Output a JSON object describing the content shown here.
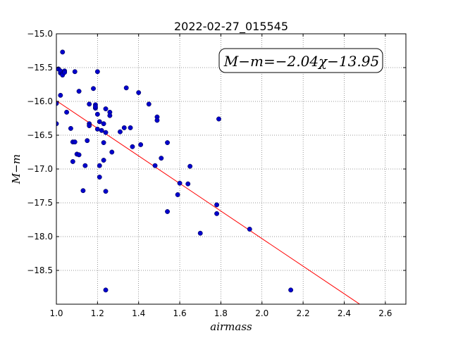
{
  "chart_data": {
    "type": "scatter",
    "title": "2022-02-27_015545",
    "xlabel": "airmass",
    "ylabel": "M−m",
    "xlim": [
      1.0,
      2.7
    ],
    "ylim": [
      -15.0,
      -19.0
    ],
    "y_inverted": true,
    "grid": true,
    "x_ticks": [
      1.0,
      1.2,
      1.4,
      1.6,
      1.8,
      2.0,
      2.2,
      2.4,
      2.6
    ],
    "x_tick_labels": [
      "1.0",
      "1.2",
      "1.4",
      "1.6",
      "1.8",
      "2.0",
      "2.2",
      "2.4",
      "2.6"
    ],
    "y_ticks": [
      -15.0,
      -15.5,
      -16.0,
      -16.5,
      -17.0,
      -17.5,
      -18.0,
      -18.5
    ],
    "y_tick_labels": [
      "−15.0",
      "−15.5",
      "−16.0",
      "−16.5",
      "−17.0",
      "−17.5",
      "−18.0",
      "−18.5"
    ],
    "annotation": "M−m=−2.04χ−13.95",
    "fit": {
      "slope": -2.04,
      "intercept": -13.95,
      "color": "#ff0000"
    },
    "point_color": "#0000cc",
    "series": [
      {
        "x": [
          1.0,
          1.0,
          1.01,
          1.02,
          1.02,
          1.02,
          1.03,
          1.03,
          1.03,
          1.04,
          1.04,
          1.05,
          1.07,
          1.08,
          1.08,
          1.09,
          1.09,
          1.1,
          1.11,
          1.11,
          1.13,
          1.14,
          1.15,
          1.16,
          1.16,
          1.16,
          1.18,
          1.19,
          1.19,
          1.19,
          1.2,
          1.2,
          1.2,
          1.21,
          1.21,
          1.21,
          1.22,
          1.23,
          1.23,
          1.23,
          1.24,
          1.24,
          1.24,
          1.24,
          1.26,
          1.26,
          1.27,
          1.31,
          1.33,
          1.34,
          1.36,
          1.37,
          1.4,
          1.41,
          1.45,
          1.48,
          1.49,
          1.49,
          1.51,
          1.54,
          1.54,
          1.59,
          1.6,
          1.64,
          1.65,
          1.7,
          1.78,
          1.78,
          1.79,
          1.94,
          2.14
        ],
        "y": [
          -16.03,
          -16.33,
          -15.52,
          -15.58,
          -15.55,
          -15.91,
          -15.27,
          -15.59,
          -15.61,
          -15.55,
          -15.57,
          -16.16,
          -16.4,
          -16.6,
          -16.89,
          -15.56,
          -16.6,
          -16.78,
          -15.85,
          -16.79,
          -17.32,
          -16.95,
          -16.58,
          -16.04,
          -16.33,
          -16.36,
          -15.81,
          -16.05,
          -16.1,
          -16.08,
          -15.56,
          -16.41,
          -16.19,
          -16.95,
          -16.3,
          -17.12,
          -16.43,
          -16.61,
          -16.87,
          -16.33,
          -16.11,
          -16.46,
          -17.33,
          -18.79,
          -16.16,
          -16.21,
          -16.75,
          -16.45,
          -16.39,
          -15.8,
          -16.39,
          -16.67,
          -15.87,
          -16.64,
          -16.04,
          -16.95,
          -16.23,
          -16.28,
          -16.84,
          -16.61,
          -17.63,
          -17.38,
          -17.21,
          -17.22,
          -16.96,
          -17.95,
          -17.53,
          -17.66,
          -16.26,
          -17.89,
          -18.79
        ]
      }
    ]
  }
}
